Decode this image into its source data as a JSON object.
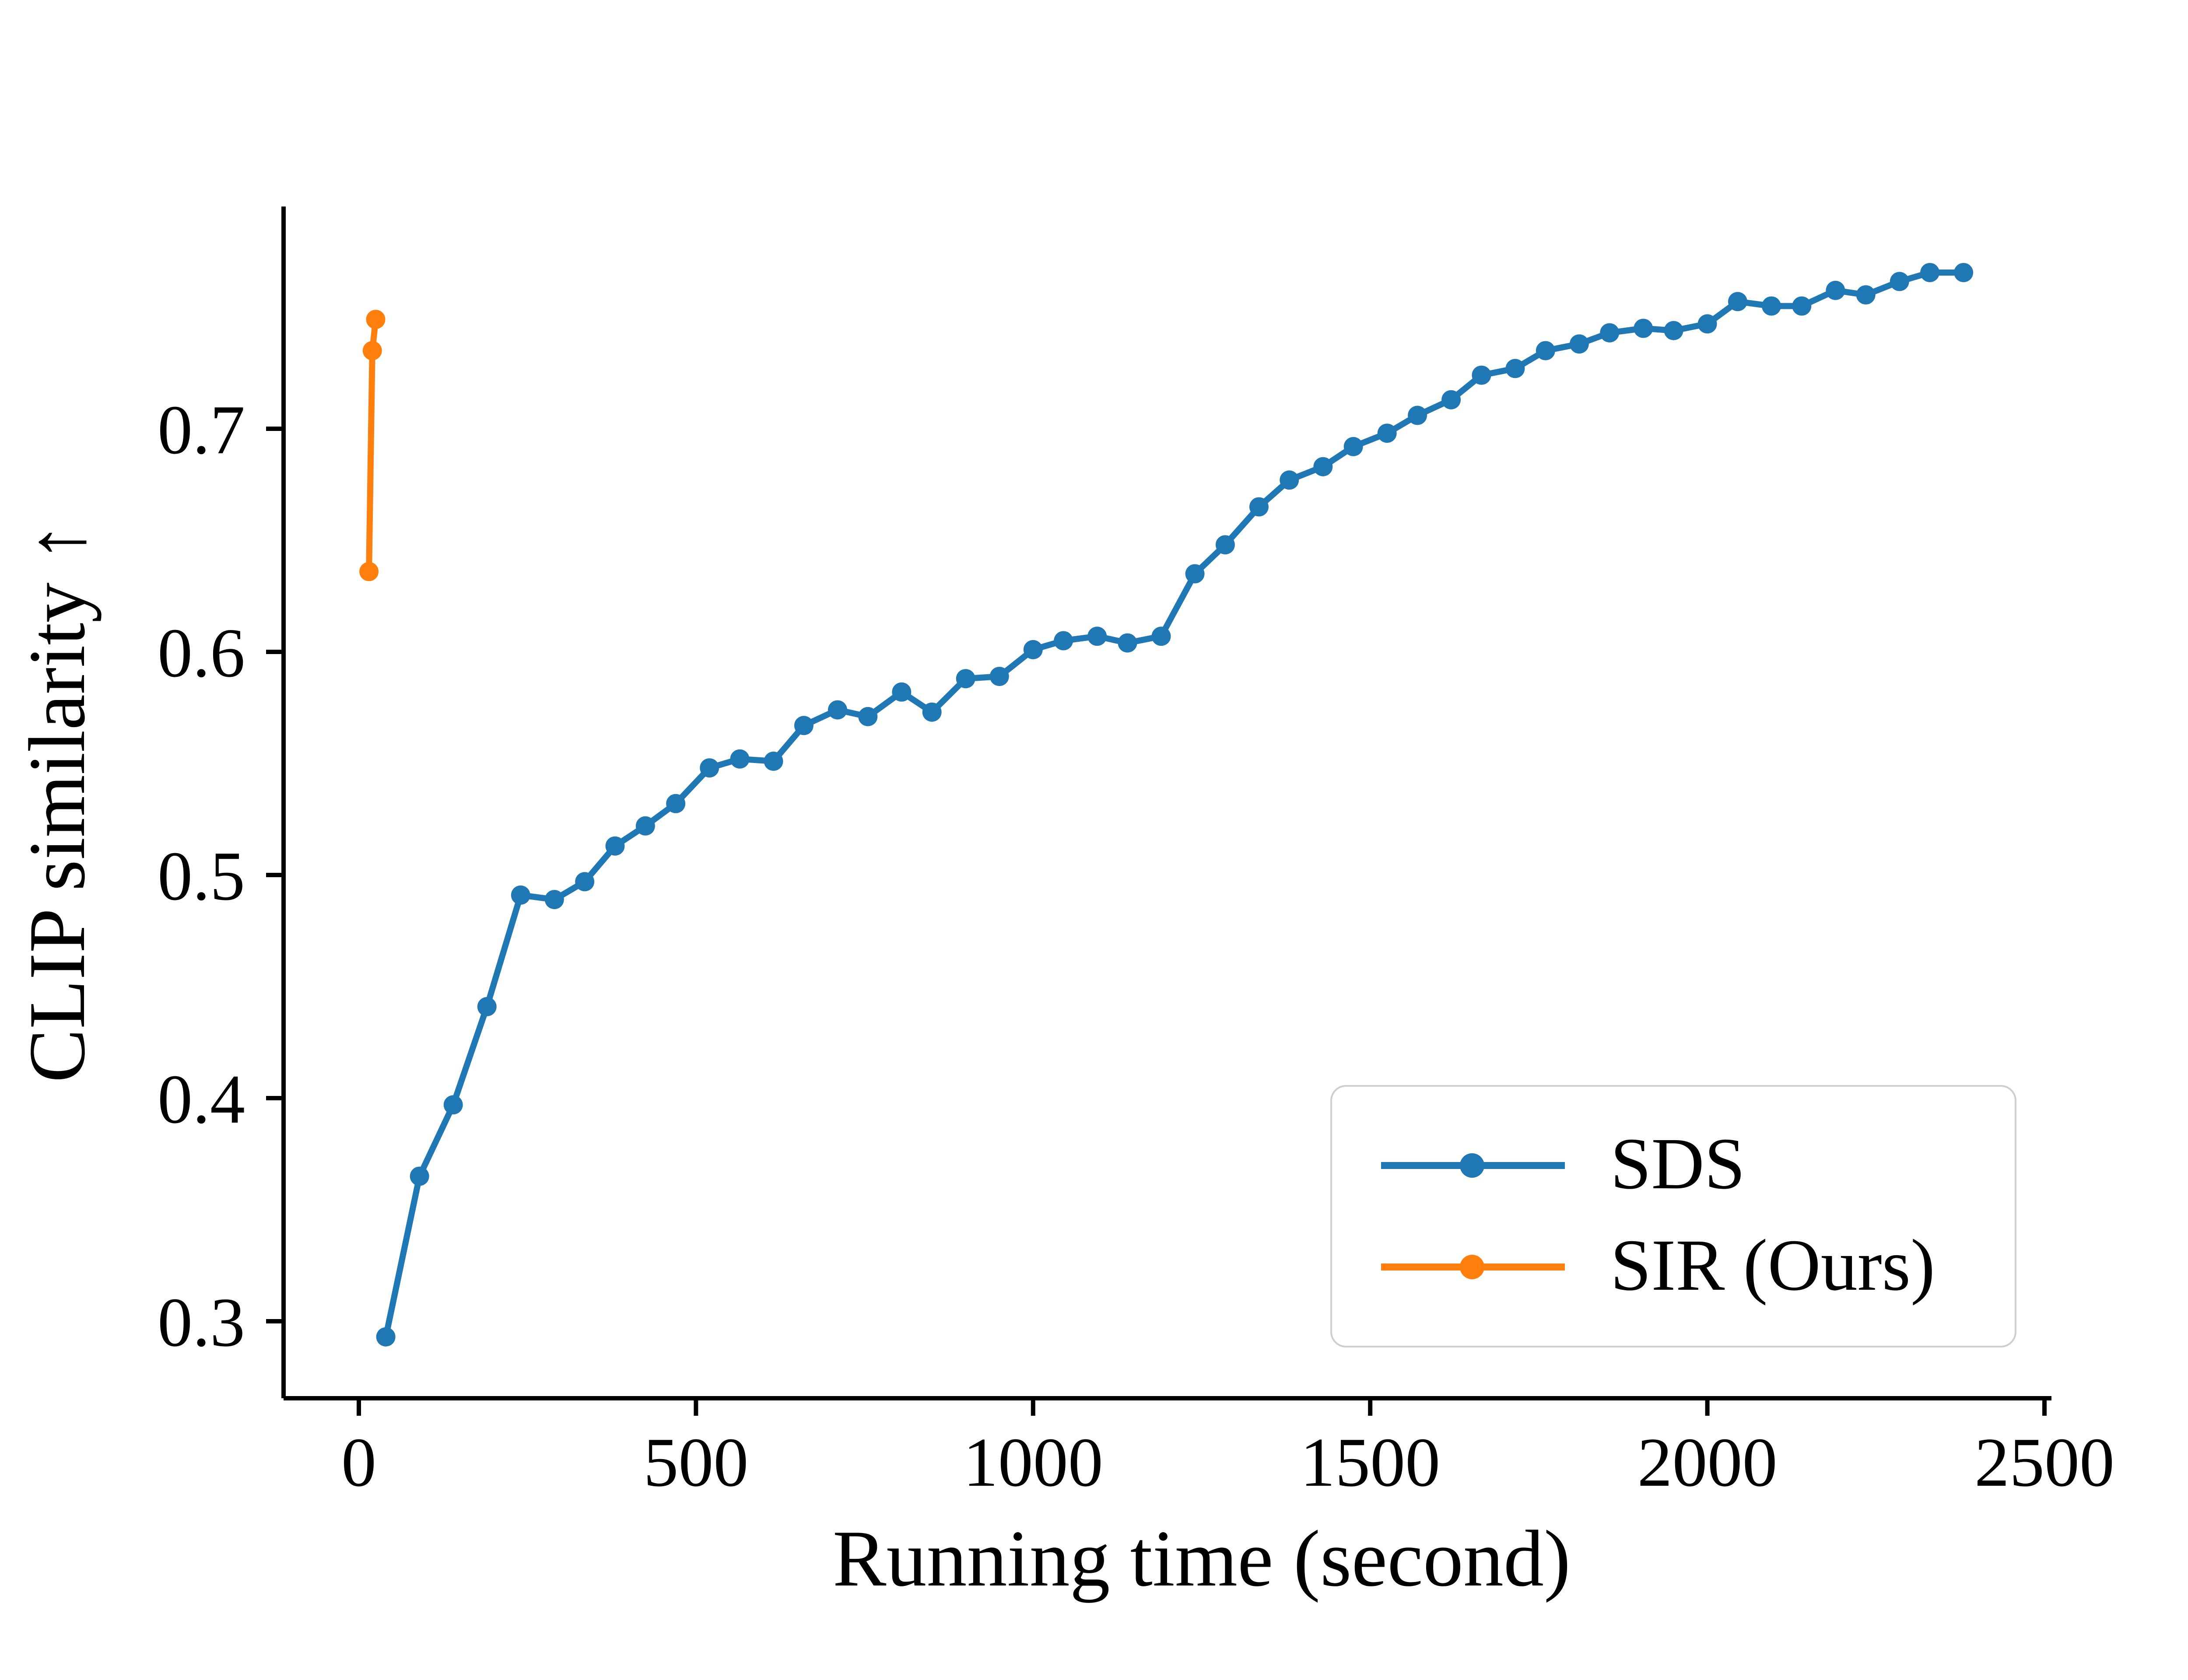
{
  "chart_data": {
    "type": "line",
    "title": "",
    "xlabel": "Running time (second)",
    "ylabel": "CLIP similarity ↑",
    "xlim": [
      -60,
      2560
    ],
    "ylim": [
      0.27,
      0.79
    ],
    "x_ticks": [
      0,
      500,
      1000,
      1500,
      2000,
      2500
    ],
    "x_tick_labels": [
      "0",
      "500",
      "1000",
      "1500",
      "2000",
      "2500"
    ],
    "y_ticks": [
      0.3,
      0.4,
      0.5,
      0.6,
      0.7
    ],
    "y_tick_labels": [
      "0.3",
      "0.4",
      "0.5",
      "0.6",
      "0.7"
    ],
    "grid": false,
    "legend_position": "lower right",
    "series": [
      {
        "name": "SDS",
        "color": "#1f77b4",
        "marker": "circle",
        "x": [
          40,
          90,
          140,
          190,
          240,
          290,
          335,
          380,
          425,
          470,
          520,
          565,
          615,
          660,
          710,
          755,
          805,
          850,
          900,
          950,
          1000,
          1045,
          1095,
          1140,
          1190,
          1240,
          1285,
          1335,
          1380,
          1430,
          1475,
          1525,
          1570,
          1620,
          1665,
          1715,
          1760,
          1810,
          1855,
          1905,
          1950,
          2000,
          2045,
          2095,
          2140,
          2190,
          2235,
          2285,
          2330,
          2380
        ],
        "y": [
          0.293,
          0.365,
          0.397,
          0.441,
          0.491,
          0.489,
          0.497,
          0.513,
          0.522,
          0.532,
          0.548,
          0.552,
          0.551,
          0.567,
          0.574,
          0.571,
          0.582,
          0.573,
          0.588,
          0.589,
          0.601,
          0.605,
          0.607,
          0.604,
          0.607,
          0.635,
          0.648,
          0.665,
          0.677,
          0.683,
          0.692,
          0.698,
          0.706,
          0.713,
          0.724,
          0.727,
          0.735,
          0.738,
          0.743,
          0.745,
          0.744,
          0.747,
          0.757,
          0.755,
          0.755,
          0.762,
          0.76,
          0.766,
          0.77,
          0.77
        ]
      },
      {
        "name": "SIR (Ours)",
        "color": "#ff7f0e",
        "marker": "circle",
        "x": [
          15,
          20,
          25
        ],
        "y": [
          0.636,
          0.735,
          0.749
        ]
      }
    ]
  },
  "legend": {
    "entries": [
      {
        "label": "SDS"
      },
      {
        "label": "SIR (Ours)"
      }
    ]
  }
}
